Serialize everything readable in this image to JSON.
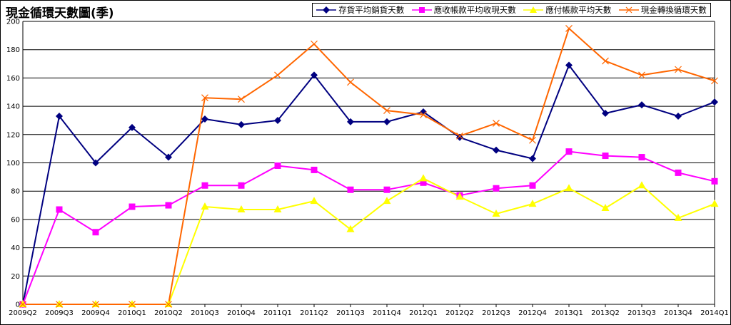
{
  "chart_data": {
    "type": "line",
    "title": "現金循環天數圖(季)",
    "categories": [
      "2009Q2",
      "2009Q3",
      "2009Q4",
      "2010Q1",
      "2010Q2",
      "2010Q3",
      "2010Q4",
      "2011Q1",
      "2011Q2",
      "2011Q3",
      "2011Q4",
      "2012Q1",
      "2012Q2",
      "2012Q3",
      "2012Q4",
      "2013Q1",
      "2013Q2",
      "2013Q3",
      "2013Q4",
      "2014Q1"
    ],
    "ylim": [
      0,
      200
    ],
    "yticks": [
      0,
      20,
      40,
      60,
      80,
      100,
      120,
      140,
      160,
      180,
      200
    ],
    "grid": true,
    "legend_position": "top-right",
    "series": [
      {
        "name": "存貨平均銷貨天數",
        "color": "#000080",
        "marker": "diamond",
        "values": [
          0,
          133,
          100,
          125,
          104,
          131,
          127,
          130,
          162,
          129,
          129,
          136,
          118,
          109,
          103,
          169,
          135,
          141,
          133,
          143
        ]
      },
      {
        "name": "應收帳款平均收現天數",
        "color": "#ff00ff",
        "marker": "square",
        "values": [
          0,
          67,
          51,
          69,
          70,
          84,
          84,
          98,
          95,
          81,
          81,
          86,
          77,
          82,
          84,
          108,
          105,
          104,
          93,
          87
        ]
      },
      {
        "name": "應付帳款平均天數",
        "color": "#ffff00",
        "marker": "triangle",
        "values": [
          0,
          0,
          0,
          0,
          0,
          69,
          67,
          67,
          73,
          53,
          73,
          89,
          76,
          64,
          71,
          82,
          68,
          84,
          61,
          71
        ]
      },
      {
        "name": "現金轉換循環天數",
        "color": "#ff6600",
        "marker": "x",
        "values": [
          0,
          0,
          0,
          0,
          0,
          146,
          145,
          162,
          184,
          157,
          137,
          134,
          119,
          128,
          116,
          195,
          172,
          162,
          166,
          158
        ]
      }
    ]
  }
}
